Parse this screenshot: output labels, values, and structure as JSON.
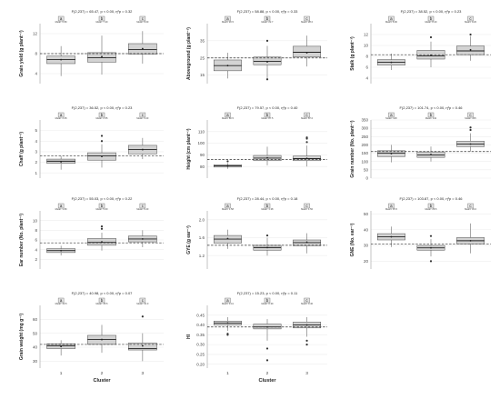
{
  "figure": {
    "xlabel_text": "Cluster"
  },
  "colors": {
    "box_fill": "#d3d3d3",
    "box_stroke": "#4d4d4d",
    "letter_fill": "#e6e6e6",
    "grid": "#eeeeee",
    "ref_line": "#333333"
  },
  "chart_data": [
    {
      "type": "box",
      "stat": "F(2,237) = 65.47, p < 0.00, η²p = 0.32",
      "ylabel": "Grain yield (g plant⁻¹)",
      "ylim": [
        2,
        14
      ],
      "yticks": [
        {
          "v": 4,
          "t": "4"
        },
        {
          "v": 8,
          "t": "8"
        },
        {
          "v": 12,
          "t": "12"
        }
      ],
      "mean_line": 8.0,
      "xlabel": "",
      "categories": [
        "",
        "",
        ""
      ],
      "boxes": [
        {
          "letter": "a",
          "note": "Mean: 6.80",
          "min": 3.5,
          "q1": 6.0,
          "median": 6.8,
          "q3": 7.5,
          "max": 9.5,
          "mean": 6.8,
          "outliers": []
        },
        {
          "letter": "b",
          "note": "Mean: 7.40",
          "min": 3.8,
          "q1": 6.3,
          "median": 7.2,
          "q3": 8.2,
          "max": 11.6,
          "mean": 7.4,
          "outliers": []
        },
        {
          "letter": "c",
          "note": "Mean: 9.00",
          "min": 6.0,
          "q1": 7.9,
          "median": 8.8,
          "q3": 10.0,
          "max": 12.5,
          "mean": 9.0,
          "outliers": []
        }
      ]
    },
    {
      "type": "box",
      "stat": "F(2,237) = 58.88, p < 0.00, η²p = 0.33",
      "ylabel": "Aboveground (g plant⁻¹)",
      "ylim": [
        10,
        45
      ],
      "yticks": [
        {
          "v": 15,
          "t": "15"
        },
        {
          "v": 25,
          "t": "25"
        },
        {
          "v": 35,
          "t": "35"
        }
      ],
      "mean_line": 25.0,
      "xlabel": "",
      "categories": [
        "",
        "",
        ""
      ],
      "boxes": [
        {
          "letter": "a",
          "note": "Mean: 20.5",
          "min": 13.0,
          "q1": 17.5,
          "median": 20.5,
          "q3": 23.8,
          "max": 28.0,
          "mean": 20.5,
          "outliers": []
        },
        {
          "letter": "b",
          "note": "Mean: 22.7",
          "min": 13.2,
          "q1": 21.0,
          "median": 23.0,
          "q3": 25.5,
          "max": 32.0,
          "mean": 22.7,
          "outliers": [
            35.0,
            12.5
          ]
        },
        {
          "letter": "c",
          "note": "Mean: 28.0",
          "min": 20.0,
          "q1": 25.5,
          "median": 28.3,
          "q3": 31.8,
          "max": 38.0,
          "mean": 28.0,
          "outliers": []
        }
      ]
    },
    {
      "type": "box",
      "stat": "F(2,237) = 38.52, p < 0.00, η²p = 0.23",
      "ylabel": "Stalk (g plant⁻¹)",
      "ylim": [
        3,
        14
      ],
      "yticks": [
        {
          "v": 4,
          "t": "4"
        },
        {
          "v": 6,
          "t": "6"
        },
        {
          "v": 8,
          "t": "8"
        },
        {
          "v": 10,
          "t": "10"
        },
        {
          "v": 12,
          "t": "12"
        }
      ],
      "mean_line": 8.3,
      "xlabel": "",
      "categories": [
        "",
        "",
        ""
      ],
      "boxes": [
        {
          "letter": "a",
          "note": "Mean: 6.90",
          "min": 5.5,
          "q1": 6.4,
          "median": 6.9,
          "q3": 7.4,
          "max": 8.5,
          "mean": 6.9,
          "outliers": []
        },
        {
          "letter": "b",
          "note": "Mean: 8.20",
          "min": 6.0,
          "q1": 7.5,
          "median": 8.1,
          "q3": 9.1,
          "max": 10.7,
          "mean": 8.2,
          "outliers": [
            11.5
          ]
        },
        {
          "letter": "c",
          "note": "Mean: 9.20",
          "min": 7.2,
          "q1": 8.3,
          "median": 9.0,
          "q3": 9.9,
          "max": 11.7,
          "mean": 9.2,
          "outliers": [
            12.0
          ]
        }
      ]
    },
    {
      "type": "box",
      "stat": "F(2,237) = 36.52, p < 0.00, η²p = 0.23",
      "ylabel": "Chaff (g plant⁻¹)",
      "ylim": [
        0.5,
        6
      ],
      "yticks": [
        {
          "v": 1,
          "t": "1"
        },
        {
          "v": 2,
          "t": "2"
        },
        {
          "v": 3,
          "t": "3"
        },
        {
          "v": 4,
          "t": "4"
        },
        {
          "v": 5,
          "t": "5"
        }
      ],
      "mean_line": 2.6,
      "xlabel": "",
      "categories": [
        "",
        "",
        ""
      ],
      "boxes": [
        {
          "letter": "a",
          "note": "Mean: 2.05",
          "min": 1.3,
          "q1": 1.9,
          "median": 2.1,
          "q3": 2.3,
          "max": 2.6,
          "mean": 2.05,
          "outliers": []
        },
        {
          "letter": "b",
          "note": "Mean: 2.55",
          "min": 1.5,
          "q1": 2.2,
          "median": 2.6,
          "q3": 2.9,
          "max": 3.7,
          "mean": 2.55,
          "outliers": [
            4.0,
            4.5
          ]
        },
        {
          "letter": "c",
          "note": "Mean: 3.20",
          "min": 2.3,
          "q1": 2.8,
          "median": 3.2,
          "q3": 3.6,
          "max": 4.3,
          "mean": 3.2,
          "outliers": []
        }
      ]
    },
    {
      "type": "box",
      "stat": "F(2,237) = 79.57, p < 0.00, η²p = 0.40",
      "ylabel": "Height (cm plant⁻¹)",
      "ylim": [
        70,
        120
      ],
      "yticks": [
        {
          "v": 80,
          "t": "80"
        },
        {
          "v": 90,
          "t": "90"
        },
        {
          "v": 100,
          "t": "100"
        },
        {
          "v": 110,
          "t": "110"
        }
      ],
      "mean_line": 86.0,
      "xlabel": "",
      "categories": [
        "",
        "",
        ""
      ],
      "boxes": [
        {
          "letter": "a",
          "note": "Mean: 80.5",
          "min": 78.0,
          "q1": 79.5,
          "median": 80.5,
          "q3": 81.5,
          "max": 83.0,
          "mean": 80.5,
          "outliers": [
            84.5
          ]
        },
        {
          "letter": "b",
          "note": "Mean: 87.5",
          "min": 81.0,
          "q1": 85.0,
          "median": 87.2,
          "q3": 89.5,
          "max": 97.0,
          "mean": 87.5,
          "outliers": []
        },
        {
          "letter": "c",
          "note": "Mean: 87.0",
          "min": 80.0,
          "q1": 85.0,
          "median": 86.8,
          "q3": 89.0,
          "max": 98.0,
          "mean": 87.0,
          "outliers": [
            101.0,
            104.0,
            105.0
          ]
        }
      ]
    },
    {
      "type": "box",
      "stat": "F(2,237) = 101.74, p < 0.00, η²p = 0.46",
      "ylabel": "Grain number (No. plant⁻¹)",
      "ylim": [
        0,
        350
      ],
      "yticks": [
        {
          "v": 0,
          "t": "0"
        },
        {
          "v": 50,
          "t": "50"
        },
        {
          "v": 100,
          "t": "100"
        },
        {
          "v": 150,
          "t": "150"
        },
        {
          "v": 200,
          "t": "200"
        },
        {
          "v": 250,
          "t": "250"
        },
        {
          "v": 300,
          "t": "300"
        },
        {
          "v": 350,
          "t": "350"
        }
      ],
      "mean_line": 160.0,
      "xlabel": "",
      "categories": [
        "",
        "",
        ""
      ],
      "boxes": [
        {
          "letter": "a",
          "note": "Mean: 148",
          "min": 95.0,
          "q1": 130.0,
          "median": 150.0,
          "q3": 165.0,
          "max": 200.0,
          "mean": 148.0,
          "outliers": []
        },
        {
          "letter": "b",
          "note": "Mean: 142",
          "min": 100.0,
          "q1": 125.0,
          "median": 140.0,
          "q3": 158.0,
          "max": 190.0,
          "mean": 142.0,
          "outliers": []
        },
        {
          "letter": "c",
          "note": "Mean: 205",
          "min": 160.0,
          "q1": 190.0,
          "median": 205.0,
          "q3": 222.0,
          "max": 270.0,
          "mean": 205.0,
          "outliers": [
            290.0,
            305.0
          ]
        }
      ]
    },
    {
      "type": "box",
      "stat": "F(2,237) = 55.03, p < 0.00, η²p = 0.22",
      "ylabel": "Ear number (No. plant⁻¹)",
      "ylim": [
        0,
        12
      ],
      "yticks": [
        {
          "v": 2,
          "t": "2"
        },
        {
          "v": 4,
          "t": "4"
        },
        {
          "v": 6,
          "t": "6"
        },
        {
          "v": 8,
          "t": "8"
        },
        {
          "v": 10,
          "t": "10"
        }
      ],
      "mean_line": 5.4,
      "xlabel": "",
      "categories": [
        "",
        "",
        ""
      ],
      "boxes": [
        {
          "letter": "a",
          "note": "Mean: 3.80",
          "min": 2.8,
          "q1": 3.4,
          "median": 3.8,
          "q3": 4.2,
          "max": 4.8,
          "mean": 3.8,
          "outliers": []
        },
        {
          "letter": "b",
          "note": "Mean: 5.60",
          "min": 3.8,
          "q1": 4.9,
          "median": 5.5,
          "q3": 6.3,
          "max": 7.5,
          "mean": 5.6,
          "outliers": [
            8.3,
            8.8
          ]
        },
        {
          "letter": "c",
          "note": "Mean: 6.20",
          "min": 4.5,
          "q1": 5.6,
          "median": 6.2,
          "q3": 6.8,
          "max": 8.0,
          "mean": 6.2,
          "outliers": []
        }
      ]
    },
    {
      "type": "box",
      "stat": "F(2,237) = 28.44, p < 0.00, η²p = 0.18",
      "ylabel": "GYE (g ear⁻¹)",
      "ylim": [
        0.9,
        2.2
      ],
      "yticks": [
        {
          "v": 1.2,
          "t": "1.2"
        },
        {
          "v": 1.6,
          "t": "1.6"
        },
        {
          "v": 2.0,
          "t": "2.0"
        }
      ],
      "mean_line": 1.43,
      "xlabel": "",
      "categories": [
        "",
        "",
        ""
      ],
      "boxes": [
        {
          "letter": "a",
          "note": "Mean: 1.58",
          "min": 1.35,
          "q1": 1.48,
          "median": 1.57,
          "q3": 1.65,
          "max": 1.78,
          "mean": 1.58,
          "outliers": []
        },
        {
          "letter": "b",
          "note": "Mean: 1.38",
          "min": 1.2,
          "q1": 1.32,
          "median": 1.38,
          "q3": 1.43,
          "max": 1.6,
          "mean": 1.38,
          "outliers": [
            1.65
          ]
        },
        {
          "letter": "c",
          "note": "Mean: 1.50",
          "min": 1.25,
          "q1": 1.42,
          "median": 1.49,
          "q3": 1.55,
          "max": 1.7,
          "mean": 1.5,
          "outliers": []
        }
      ]
    },
    {
      "type": "box",
      "stat": "F(2,237) = 103.87, p < 0.00, η²p = 0.46",
      "ylabel": "GNE (No. ear⁻¹)",
      "ylim": [
        15,
        52
      ],
      "yticks": [
        {
          "v": 20,
          "t": "20"
        },
        {
          "v": 30,
          "t": "30"
        },
        {
          "v": 40,
          "t": "40"
        },
        {
          "v": 50,
          "t": "50"
        }
      ],
      "mean_line": 31.0,
      "xlabel": "",
      "categories": [
        "",
        "",
        ""
      ],
      "boxes": [
        {
          "letter": "a",
          "note": "Mean: 35.5",
          "min": 29.0,
          "q1": 33.5,
          "median": 35.5,
          "q3": 37.5,
          "max": 42.0,
          "mean": 35.5,
          "outliers": []
        },
        {
          "letter": "b",
          "note": "Mean: 28.5",
          "min": 23.0,
          "q1": 27.0,
          "median": 28.5,
          "q3": 30.0,
          "max": 34.0,
          "mean": 28.5,
          "outliers": [
            36.0,
            20.0
          ]
        },
        {
          "letter": "c",
          "note": "Mean: 33.0",
          "min": 25.0,
          "q1": 31.0,
          "median": 33.0,
          "q3": 35.0,
          "max": 44.0,
          "mean": 33.0,
          "outliers": []
        }
      ]
    },
    {
      "type": "box",
      "stat": "F(2,237) = 40.98, p < 0.00, η²p = 0.07",
      "ylabel": "Grain weight (mg g⁻¹)",
      "ylim": [
        25,
        70
      ],
      "yticks": [
        {
          "v": 30,
          "t": "30"
        },
        {
          "v": 40,
          "t": "40"
        },
        {
          "v": 50,
          "t": "50"
        },
        {
          "v": 60,
          "t": "60"
        }
      ],
      "mean_line": 42.0,
      "xlabel": "Cluster",
      "categories": [
        "1",
        "2",
        "3"
      ],
      "boxes": [
        {
          "letter": "a",
          "note": "Mean: 40.5",
          "min": 34.0,
          "q1": 39.0,
          "median": 41.0,
          "q3": 42.5,
          "max": 45.0,
          "mean": 40.5,
          "outliers": []
        },
        {
          "letter": "b",
          "note": "Mean: 45.5",
          "min": 36.0,
          "q1": 42.0,
          "median": 45.5,
          "q3": 48.5,
          "max": 56.0,
          "mean": 45.5,
          "outliers": []
        },
        {
          "letter": "c",
          "note": "Mean: 41.0",
          "min": 30.0,
          "q1": 38.0,
          "median": 39.0,
          "q3": 43.0,
          "max": 50.0,
          "mean": 41.0,
          "outliers": [
            62.0
          ]
        }
      ]
    },
    {
      "type": "box",
      "stat": "F(2,237) = 15.23, p < 0.00, η²p = 0.11",
      "ylabel": "HI",
      "ylim": [
        0.18,
        0.5
      ],
      "yticks": [
        {
          "v": 0.2,
          "t": "0.20"
        },
        {
          "v": 0.25,
          "t": "0.25"
        },
        {
          "v": 0.3,
          "t": "0.30"
        },
        {
          "v": 0.35,
          "t": "0.35"
        },
        {
          "v": 0.4,
          "t": "0.40"
        },
        {
          "v": 0.45,
          "t": "0.45"
        }
      ],
      "mean_line": 0.39,
      "xlabel": "Cluster",
      "categories": [
        "1",
        "2",
        "3"
      ],
      "boxes": [
        {
          "letter": "a",
          "note": "Mean: 0.41",
          "min": 0.37,
          "q1": 0.4,
          "median": 0.41,
          "q3": 0.42,
          "max": 0.44,
          "mean": 0.41,
          "outliers": [
            0.35,
            0.355
          ]
        },
        {
          "letter": "b",
          "note": "Mean: 0.39",
          "min": 0.32,
          "q1": 0.38,
          "median": 0.39,
          "q3": 0.405,
          "max": 0.43,
          "mean": 0.39,
          "outliers": [
            0.28,
            0.22
          ]
        },
        {
          "letter": "c",
          "note": "Mean: 0.40",
          "min": 0.34,
          "q1": 0.385,
          "median": 0.4,
          "q3": 0.415,
          "max": 0.44,
          "mean": 0.4,
          "outliers": [
            0.32,
            0.3
          ]
        }
      ]
    }
  ]
}
